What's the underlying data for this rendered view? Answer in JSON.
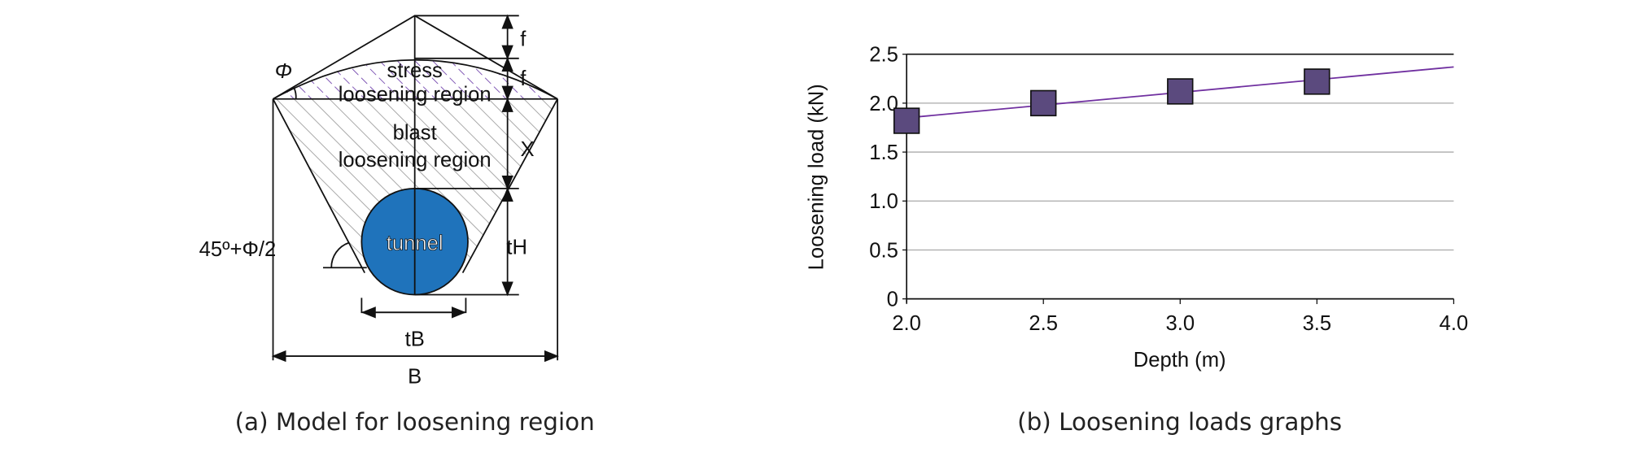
{
  "diagram": {
    "caption": "(a) Model for loosening region",
    "labels": {
      "stress": "stress",
      "stress_region": "loosening region",
      "blast": "blast",
      "blast_region": "loosening region",
      "tunnel": "tunnel",
      "f_top": "f",
      "f_mid": "f",
      "x": "X",
      "tH": "tH",
      "tB": "tB",
      "B": "B",
      "phi": "Φ",
      "angle": "45º+Φ/2"
    },
    "colors": {
      "tunnel": "#1f73bb",
      "hatch": "#999999",
      "stress_hatch": "#6a3aa8"
    }
  },
  "chart_data": {
    "type": "scatter",
    "caption": "(b) Loosening loads graphs",
    "xlabel": "Depth (m)",
    "ylabel": "Loosening load (kN)",
    "xlim": [
      2.0,
      4.0
    ],
    "ylim": [
      0,
      2.5
    ],
    "xticks": [
      "2.0",
      "2.5",
      "3.0",
      "3.5",
      "4.0"
    ],
    "yticks": [
      "0",
      "0.5",
      "1.0",
      "1.5",
      "2.0",
      "2.5"
    ],
    "grid": "horizontal",
    "points": {
      "x": [
        2.0,
        2.5,
        3.0,
        3.5
      ],
      "y": [
        1.82,
        2.0,
        2.12,
        2.22
      ]
    },
    "trendline": {
      "x": [
        2.0,
        4.0
      ],
      "y": [
        1.85,
        2.37
      ]
    },
    "colors": {
      "marker": "#5b4a7e",
      "line": "#7030a0"
    }
  }
}
